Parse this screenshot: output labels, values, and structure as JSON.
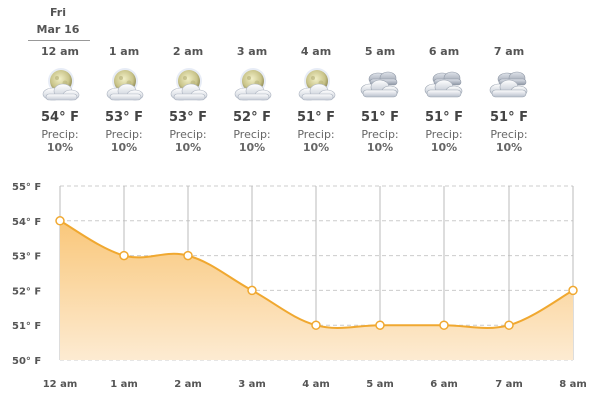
{
  "header": {
    "weekday": "Fri",
    "date": "Mar 16"
  },
  "hours": [
    {
      "time": "12 am",
      "temp": "54° F",
      "precip_label": "Precip:",
      "precip": "10%",
      "icon": "moon-partly-cloudy-icon"
    },
    {
      "time": "1 am",
      "temp": "53° F",
      "precip_label": "Precip:",
      "precip": "10%",
      "icon": "moon-partly-cloudy-icon"
    },
    {
      "time": "2 am",
      "temp": "53° F",
      "precip_label": "Precip:",
      "precip": "10%",
      "icon": "moon-partly-cloudy-icon"
    },
    {
      "time": "3 am",
      "temp": "52° F",
      "precip_label": "Precip:",
      "precip": "10%",
      "icon": "moon-partly-cloudy-icon"
    },
    {
      "time": "4 am",
      "temp": "51° F",
      "precip_label": "Precip:",
      "precip": "10%",
      "icon": "moon-partly-cloudy-icon"
    },
    {
      "time": "5 am",
      "temp": "51° F",
      "precip_label": "Precip:",
      "precip": "10%",
      "icon": "cloudy-icon"
    },
    {
      "time": "6 am",
      "temp": "51° F",
      "precip_label": "Precip:",
      "precip": "10%",
      "icon": "cloudy-icon"
    },
    {
      "time": "7 am",
      "temp": "51° F",
      "precip_label": "Precip:",
      "precip": "10%",
      "icon": "cloudy-icon"
    }
  ],
  "colors": {
    "line": "#f0a830",
    "fill_top": "#f9c77a",
    "fill_bottom": "#fdebd2",
    "grid": "#cccccc"
  },
  "chart_data": {
    "type": "area",
    "x": [
      "12 am",
      "1 am",
      "2 am",
      "3 am",
      "4 am",
      "5 am",
      "6 am",
      "7 am",
      "8 am"
    ],
    "values": [
      54,
      53,
      53,
      52,
      51,
      51,
      51,
      51,
      52
    ],
    "yticks": [
      "55° F",
      "54° F",
      "53° F",
      "52° F",
      "51° F",
      "50° F"
    ],
    "ylim": [
      50,
      55
    ],
    "grid": true
  }
}
